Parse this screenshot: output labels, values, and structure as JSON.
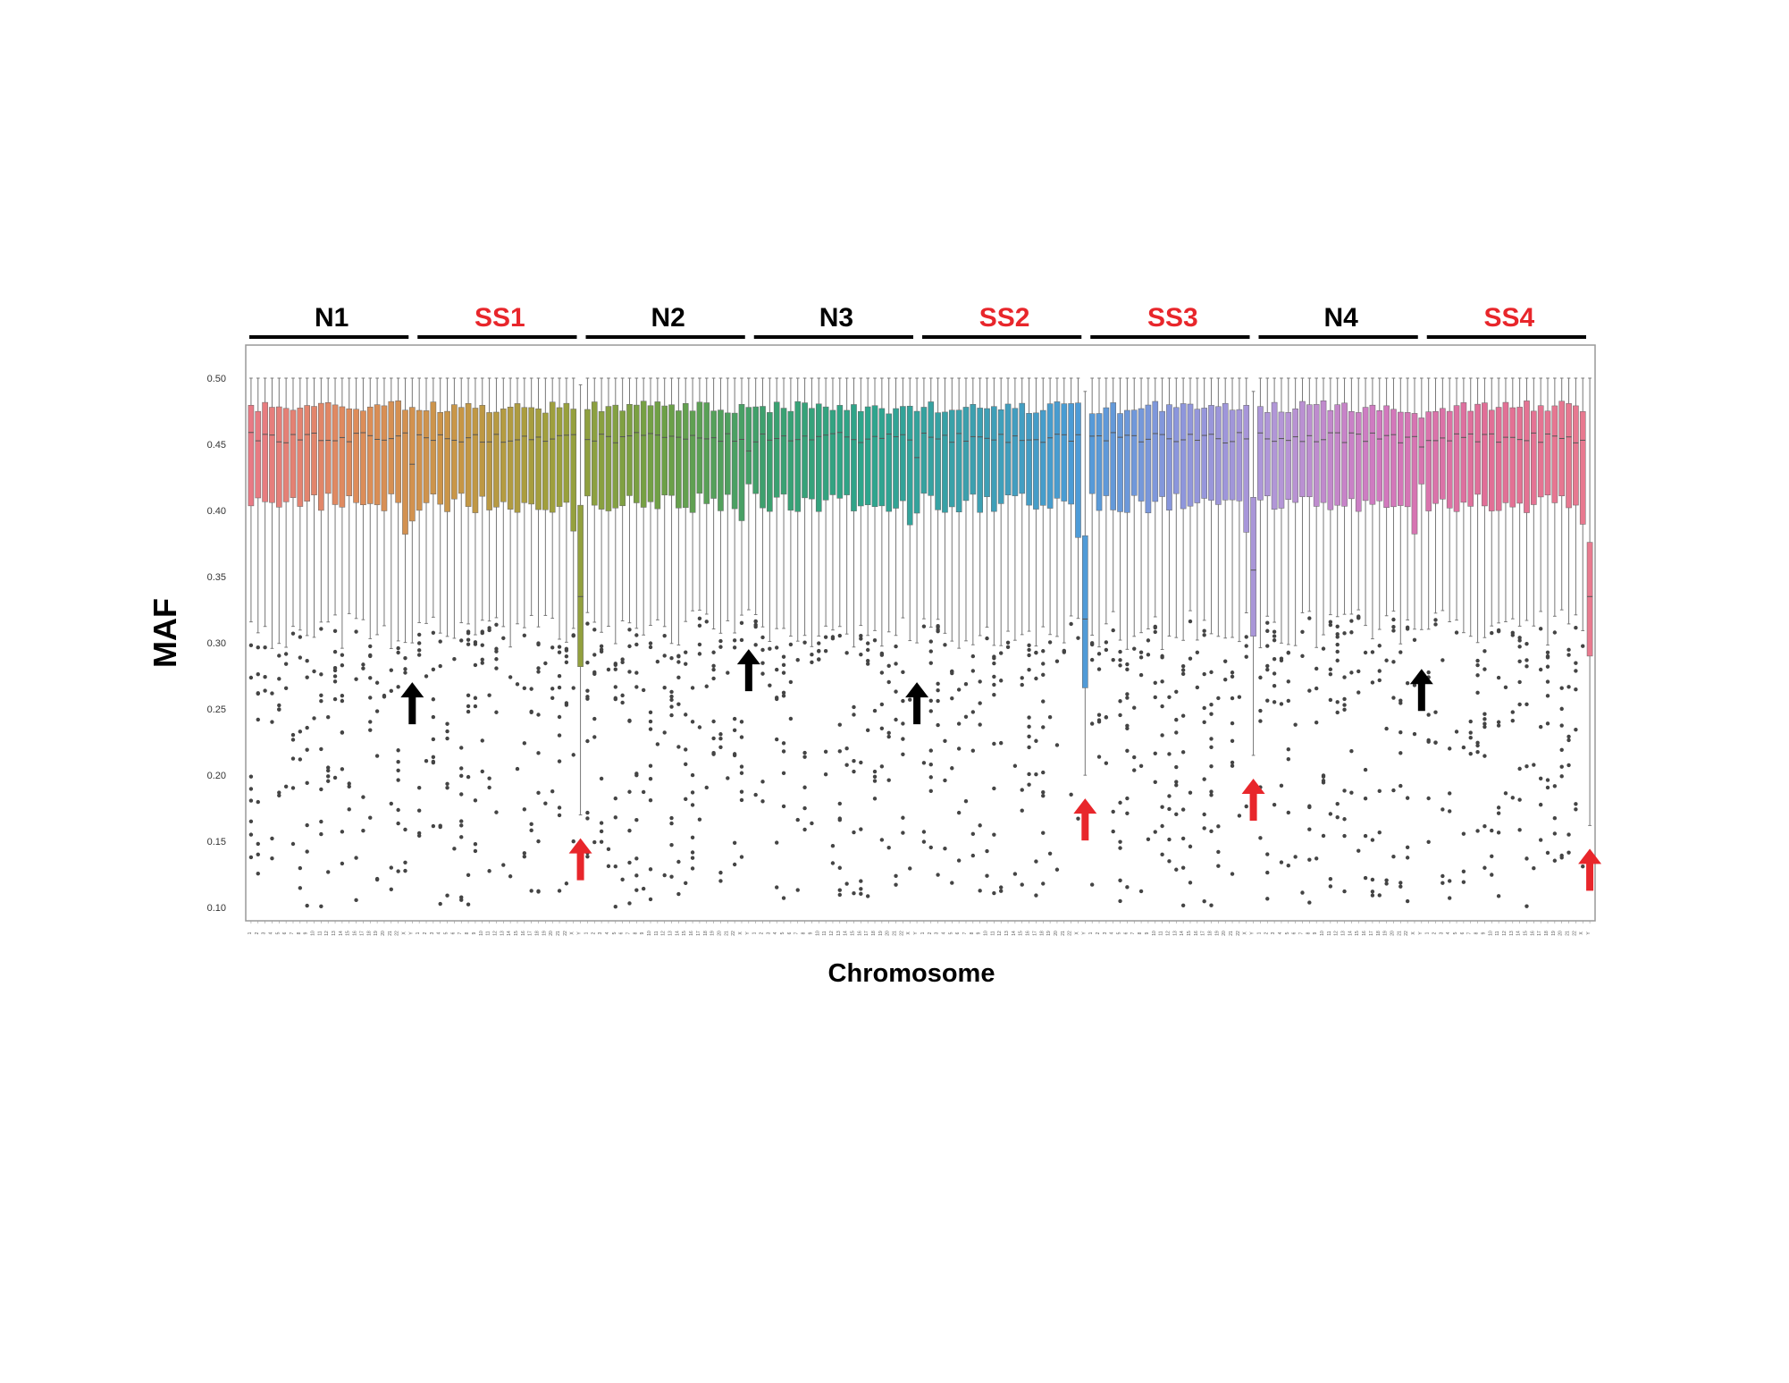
{
  "chart_data": {
    "type": "box",
    "xlabel": "Chromosome",
    "ylabel": "MAF",
    "ylim": [
      0.09,
      0.525
    ],
    "yticks": [
      "0.50",
      "0.45",
      "0.40",
      "0.35",
      "0.30",
      "0.25",
      "0.20",
      "0.15",
      "0.10"
    ],
    "grid": false,
    "chromosomes": [
      "1",
      "2",
      "3",
      "4",
      "5",
      "6",
      "7",
      "8",
      "9",
      "10",
      "11",
      "12",
      "13",
      "14",
      "15",
      "16",
      "17",
      "18",
      "19",
      "20",
      "21",
      "22",
      "X",
      "Y"
    ],
    "groups": [
      {
        "name": "N1",
        "label_color": "#000000",
        "y_arrow": "black",
        "y_box": {
          "min": 0.3,
          "q1": 0.392,
          "median": 0.435,
          "q3": 0.478,
          "max": 0.5
        }
      },
      {
        "name": "SS1",
        "label_color": "#e8262b",
        "y_arrow": "red",
        "y_box": {
          "min": 0.17,
          "q1": 0.282,
          "median": 0.335,
          "q3": 0.404,
          "max": 0.495
        }
      },
      {
        "name": "N2",
        "label_color": "#000000",
        "y_arrow": "black",
        "y_box": {
          "min": 0.325,
          "q1": 0.42,
          "median": 0.445,
          "q3": 0.478,
          "max": 0.5
        }
      },
      {
        "name": "N3",
        "label_color": "#000000",
        "y_arrow": "black",
        "y_box": {
          "min": 0.3,
          "q1": 0.398,
          "median": 0.44,
          "q3": 0.475,
          "max": 0.5
        }
      },
      {
        "name": "SS2",
        "label_color": "#e8262b",
        "y_arrow": "red",
        "y_box": {
          "min": 0.2,
          "q1": 0.266,
          "median": 0.318,
          "q3": 0.381,
          "max": 0.49
        }
      },
      {
        "name": "SS3",
        "label_color": "#e8262b",
        "y_arrow": "red",
        "y_box": {
          "min": 0.215,
          "q1": 0.305,
          "median": 0.355,
          "q3": 0.41,
          "max": 0.49
        }
      },
      {
        "name": "N4",
        "label_color": "#000000",
        "y_arrow": "black",
        "y_box": {
          "min": 0.31,
          "q1": 0.42,
          "median": 0.448,
          "q3": 0.47,
          "max": 0.5
        }
      },
      {
        "name": "SS4",
        "label_color": "#e8262b",
        "y_arrow": "red",
        "y_box": {
          "min": 0.162,
          "q1": 0.29,
          "median": 0.335,
          "q3": 0.376,
          "max": 0.5
        }
      }
    ],
    "autosome_box_typical": {
      "min": 0.325,
      "q1": 0.425,
      "median": 0.455,
      "q3": 0.478,
      "max": 0.5
    },
    "outlier_range": [
      0.1,
      0.36
    ],
    "colors": {
      "palette_start": "#e87a85",
      "palette_mid_1": "#9aa33a",
      "palette_mid_2": "#2fa58a",
      "palette_mid_3": "#4a9fd8",
      "palette_mid_4": "#b59ad8",
      "palette_end": "#e07a8f",
      "red": "#e8262b",
      "black": "#000000"
    }
  }
}
